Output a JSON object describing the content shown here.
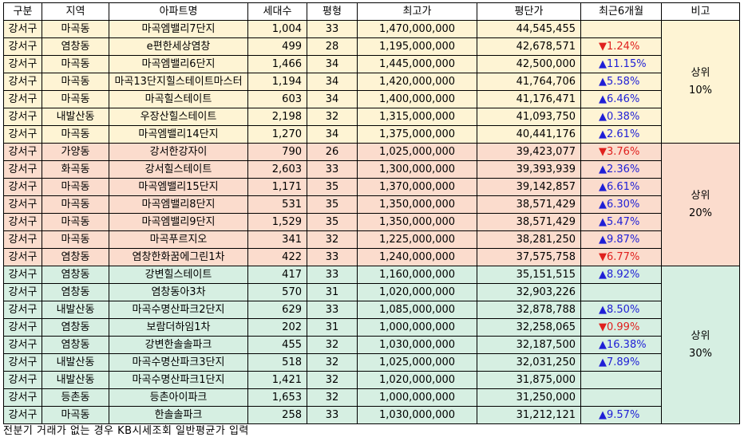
{
  "headers": [
    "구분",
    "지역",
    "아파트명",
    "세대수",
    "평형",
    "최고가",
    "평단가",
    "최근6개월",
    "비고"
  ],
  "groups": [
    {
      "note_line1": "상위",
      "note_line2": "10%",
      "rows": [
        {
          "gu": "강서구",
          "dong": "마곡동",
          "apt": "마곡엠밸리7단지",
          "units": "1,004",
          "size": "33",
          "max": "1,470,000,000",
          "ppp": "44,545,455",
          "chg": "",
          "dir": ""
        },
        {
          "gu": "강서구",
          "dong": "염창동",
          "apt": "e편한세상염창",
          "units": "499",
          "size": "28",
          "max": "1,195,000,000",
          "ppp": "42,678,571",
          "chg": "▼1.24%",
          "dir": "down"
        },
        {
          "gu": "강서구",
          "dong": "마곡동",
          "apt": "마곡엠밸리6단지",
          "units": "1,466",
          "size": "34",
          "max": "1,445,000,000",
          "ppp": "42,500,000",
          "chg": "▲11.15%",
          "dir": "up"
        },
        {
          "gu": "강서구",
          "dong": "마곡동",
          "apt": "마곡13단지힐스테이트마스터",
          "units": "1,194",
          "size": "34",
          "max": "1,420,000,000",
          "ppp": "41,764,706",
          "chg": "▲5.58%",
          "dir": "up"
        },
        {
          "gu": "강서구",
          "dong": "마곡동",
          "apt": "마곡힐스테이트",
          "units": "603",
          "size": "34",
          "max": "1,400,000,000",
          "ppp": "41,176,471",
          "chg": "▲6.46%",
          "dir": "up"
        },
        {
          "gu": "강서구",
          "dong": "내발산동",
          "apt": "우장산힐스테이트",
          "units": "2,198",
          "size": "32",
          "max": "1,315,000,000",
          "ppp": "41,093,750",
          "chg": "▲0.38%",
          "dir": "up"
        },
        {
          "gu": "강서구",
          "dong": "마곡동",
          "apt": "마곡엠밸리14단지",
          "units": "1,270",
          "size": "34",
          "max": "1,375,000,000",
          "ppp": "40,441,176",
          "chg": "▲2.61%",
          "dir": "up"
        }
      ]
    },
    {
      "note_line1": "상위",
      "note_line2": "20%",
      "rows": [
        {
          "gu": "강서구",
          "dong": "가양동",
          "apt": "강서한강자이",
          "units": "790",
          "size": "26",
          "max": "1,025,000,000",
          "ppp": "39,423,077",
          "chg": "▼3.76%",
          "dir": "down"
        },
        {
          "gu": "강서구",
          "dong": "화곡동",
          "apt": "강서힐스테이트",
          "units": "2,603",
          "size": "33",
          "max": "1,300,000,000",
          "ppp": "39,393,939",
          "chg": "▲2.36%",
          "dir": "up"
        },
        {
          "gu": "강서구",
          "dong": "마곡동",
          "apt": "마곡엠밸리15단지",
          "units": "1,171",
          "size": "35",
          "max": "1,370,000,000",
          "ppp": "39,142,857",
          "chg": "▲6.61%",
          "dir": "up"
        },
        {
          "gu": "강서구",
          "dong": "마곡동",
          "apt": "마곡엠밸리8단지",
          "units": "531",
          "size": "35",
          "max": "1,350,000,000",
          "ppp": "38,571,429",
          "chg": "▲6.30%",
          "dir": "up"
        },
        {
          "gu": "강서구",
          "dong": "마곡동",
          "apt": "마곡엠밸리9단지",
          "units": "1,529",
          "size": "35",
          "max": "1,350,000,000",
          "ppp": "38,571,429",
          "chg": "▲5.47%",
          "dir": "up"
        },
        {
          "gu": "강서구",
          "dong": "마곡동",
          "apt": "마곡푸르지오",
          "units": "341",
          "size": "32",
          "max": "1,225,000,000",
          "ppp": "38,281,250",
          "chg": "▲9.87%",
          "dir": "up"
        },
        {
          "gu": "강서구",
          "dong": "염창동",
          "apt": "염창한화꿈에그린1차",
          "units": "422",
          "size": "33",
          "max": "1,240,000,000",
          "ppp": "37,575,758",
          "chg": "▼6.77%",
          "dir": "down"
        }
      ]
    },
    {
      "note_line1": "상위",
      "note_line2": "30%",
      "rows": [
        {
          "gu": "강서구",
          "dong": "염창동",
          "apt": "강변힐스테이트",
          "units": "417",
          "size": "33",
          "max": "1,160,000,000",
          "ppp": "35,151,515",
          "chg": "▲8.92%",
          "dir": "up"
        },
        {
          "gu": "강서구",
          "dong": "염창동",
          "apt": "염창동아3차",
          "units": "570",
          "size": "31",
          "max": "1,020,000,000",
          "ppp": "32,903,226",
          "chg": "",
          "dir": ""
        },
        {
          "gu": "강서구",
          "dong": "내발산동",
          "apt": "마곡수명산파크2단지",
          "units": "629",
          "size": "33",
          "max": "1,085,000,000",
          "ppp": "32,878,788",
          "chg": "▲8.50%",
          "dir": "up"
        },
        {
          "gu": "강서구",
          "dong": "염창동",
          "apt": "보람더하임1차",
          "units": "202",
          "size": "31",
          "max": "1,000,000,000",
          "ppp": "32,258,065",
          "chg": "▼0.99%",
          "dir": "down"
        },
        {
          "gu": "강서구",
          "dong": "염창동",
          "apt": "강변한솔솔파크",
          "units": "455",
          "size": "32",
          "max": "1,030,000,000",
          "ppp": "32,187,500",
          "chg": "▲16.38%",
          "dir": "up"
        },
        {
          "gu": "강서구",
          "dong": "내발산동",
          "apt": "마곡수명산파크3단지",
          "units": "518",
          "size": "32",
          "max": "1,025,000,000",
          "ppp": "32,031,250",
          "chg": "▲7.89%",
          "dir": "up"
        },
        {
          "gu": "강서구",
          "dong": "내발산동",
          "apt": "마곡수명산파크1단지",
          "units": "1,421",
          "size": "32",
          "max": "1,020,000,000",
          "ppp": "31,875,000",
          "chg": "",
          "dir": ""
        },
        {
          "gu": "강서구",
          "dong": "등촌동",
          "apt": "등촌아이파크",
          "units": "1,653",
          "size": "32",
          "max": "1,000,000,000",
          "ppp": "31,250,000",
          "chg": "",
          "dir": ""
        },
        {
          "gu": "강서구",
          "dong": "마곡동",
          "apt": "한솔솔파크",
          "units": "258",
          "size": "33",
          "max": "1,030,000,000",
          "ppp": "31,212,121",
          "chg": "▲9.57%",
          "dir": "up"
        }
      ]
    }
  ],
  "footnote": "전분기 거래가 없는 경우 KB시세조회 일반평균가 입력",
  "colors": {
    "group1_bg": "#fef4d4",
    "group2_bg": "#fbdccd",
    "group3_bg": "#d6efe2",
    "up": "#1f1fd6",
    "down": "#e0201e"
  }
}
